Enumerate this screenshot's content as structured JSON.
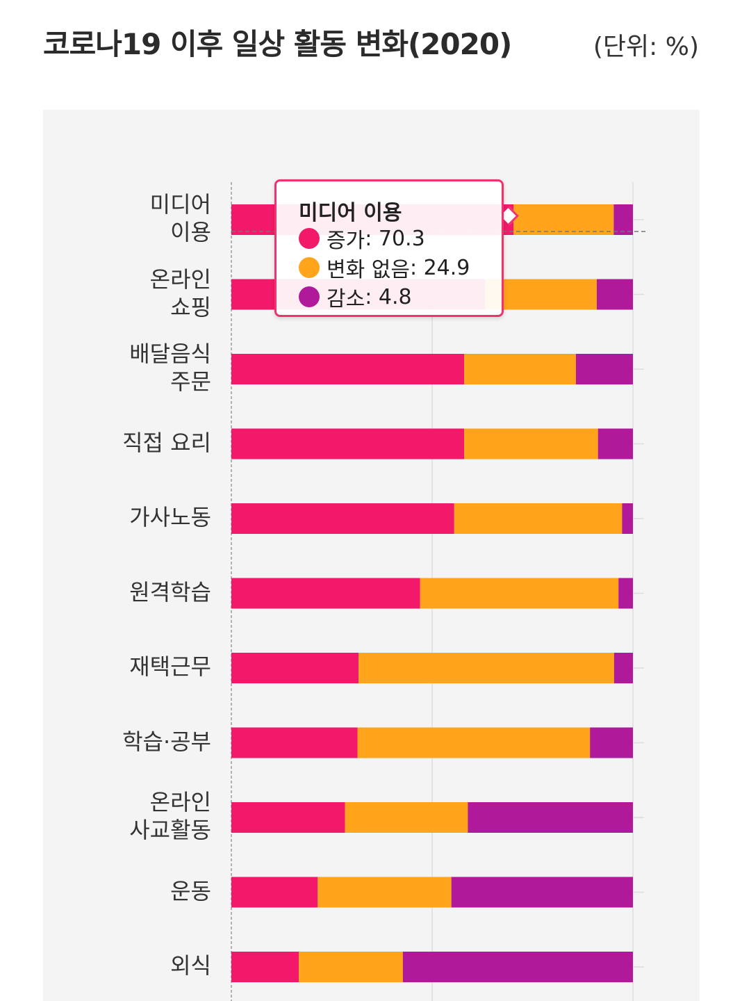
{
  "title": "코로나19 이후 일상 활동 변화(2020)",
  "unit": "(단위: %)",
  "colors": {
    "increase": "#f2196a",
    "no_change": "#ffa41b",
    "decrease": "#b1199b",
    "background": "#f4f4f4",
    "tooltip_border": "#f0336d"
  },
  "tooltip": {
    "title": "미디어 이용",
    "rows": [
      {
        "label": "증가",
        "value": "70.3",
        "color": "#f2196a"
      },
      {
        "label": "변화 없음",
        "value": "24.9",
        "color": "#ffa41b"
      },
      {
        "label": "감소",
        "value": "4.8",
        "color": "#b1199b"
      }
    ]
  },
  "chart_data": {
    "type": "bar",
    "orientation": "horizontal",
    "stacked": true,
    "title": "코로나19 이후 일상 활동 변화(2020)",
    "unit": "%",
    "xlim": [
      0,
      100
    ],
    "grid": true,
    "categories": [
      [
        "미디어",
        "이용"
      ],
      [
        "온라인",
        "쇼핑"
      ],
      [
        "배달음식",
        "주문"
      ],
      [
        "직접 요리"
      ],
      [
        "가사노동"
      ],
      [
        "원격학습"
      ],
      [
        "재택근무"
      ],
      [
        "학습·공부"
      ],
      [
        "온라인",
        "사교활동"
      ],
      [
        "운동"
      ],
      [
        "외식"
      ]
    ],
    "series": [
      {
        "name": "증가",
        "color": "#f2196a",
        "values": [
          70.3,
          63.2,
          58.0,
          58.0,
          55.5,
          47.0,
          31.7,
          31.4,
          28.3,
          21.5,
          16.8
        ]
      },
      {
        "name": "변화 없음",
        "color": "#ffa41b",
        "values": [
          24.9,
          27.8,
          27.8,
          33.3,
          41.8,
          49.4,
          63.6,
          57.9,
          30.6,
          33.3,
          25.9
        ]
      },
      {
        "name": "감소",
        "color": "#b1199b",
        "values": [
          4.8,
          9.0,
          14.2,
          8.7,
          2.7,
          3.6,
          4.7,
          10.7,
          41.1,
          45.2,
          57.3
        ]
      }
    ],
    "highlighted_category": "미디어 이용"
  }
}
